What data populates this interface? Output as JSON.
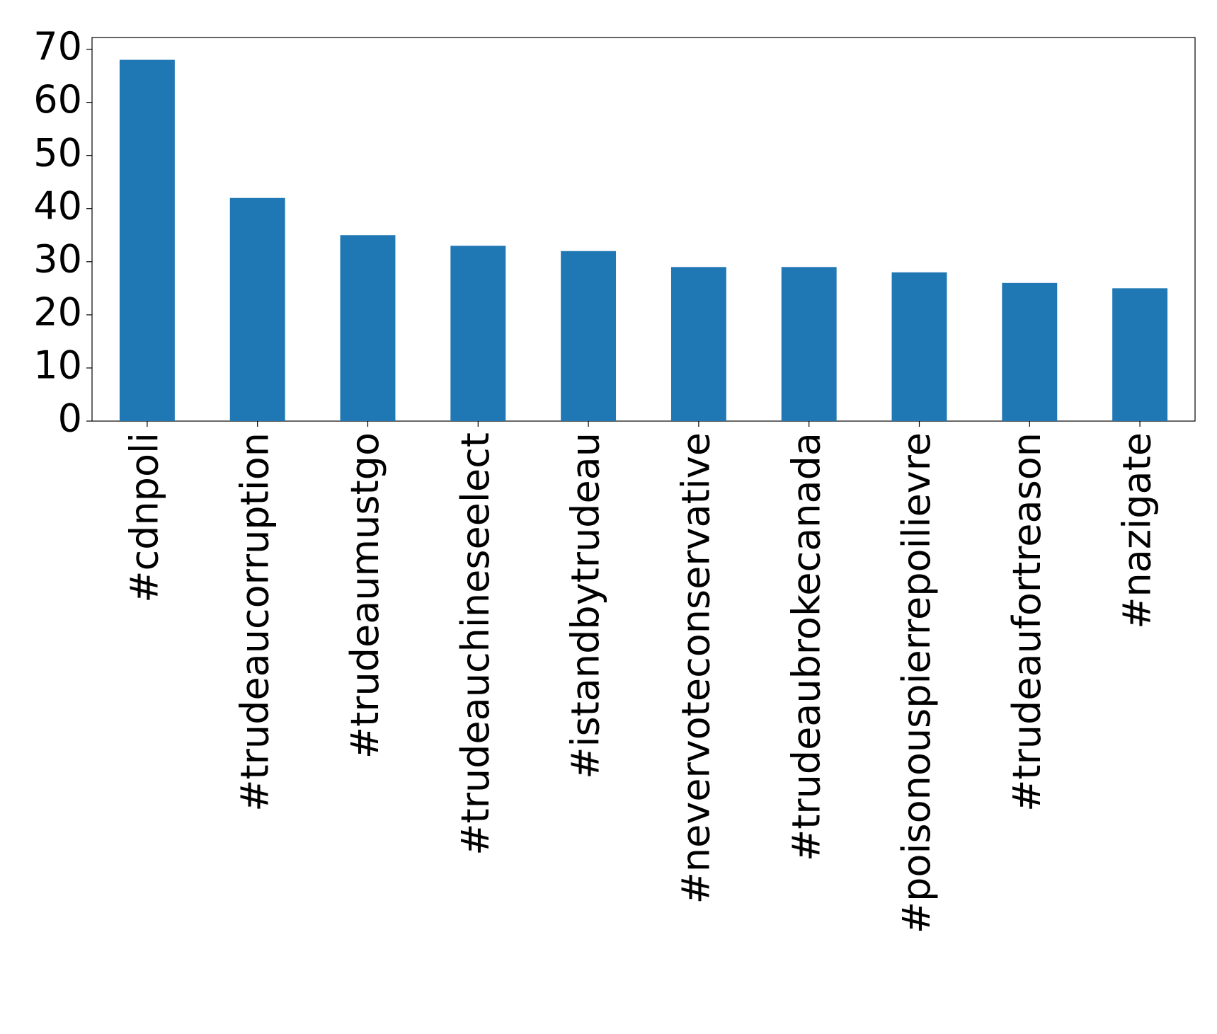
{
  "chart_data": {
    "type": "bar",
    "categories": [
      "#cdnpoli",
      "#trudeaucorruption",
      "#trudeaumustgo",
      "#trudeauchineseelect",
      "#istandbytrudeau",
      "#nevervoteconservative",
      "#trudeaubrokecanada",
      "#poisonouspierrepoilievre",
      "#trudeaufortreason",
      "#nazigate"
    ],
    "values": [
      68,
      42,
      35,
      33,
      32,
      29,
      29,
      28,
      26,
      25
    ],
    "color": "#1f77b4",
    "ylim": [
      0,
      72.2
    ],
    "yticks": [
      0,
      10,
      20,
      30,
      40,
      50,
      60,
      70
    ],
    "grid": false
  }
}
